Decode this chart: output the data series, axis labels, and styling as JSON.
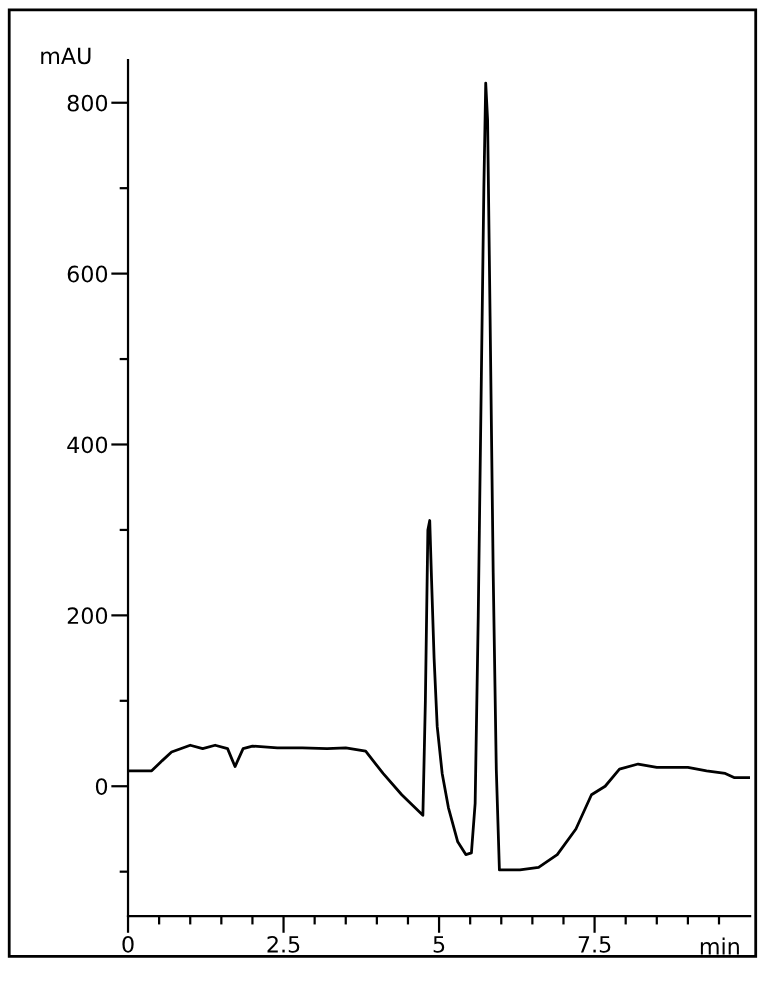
{
  "chart_data": {
    "type": "line",
    "xlabel": "min",
    "ylabel": "mAU",
    "xlim": [
      0,
      10
    ],
    "ylim": [
      -152,
      850
    ],
    "xticks": [
      0,
      {
        "value": 0.5,
        "label": null
      },
      {
        "value": 1,
        "label": null
      },
      {
        "value": 1.5,
        "label": null
      },
      {
        "value": 2,
        "label": null
      },
      {
        "value": 2.5,
        "label": "2.5"
      },
      {
        "value": 3,
        "label": null
      },
      {
        "value": 3.5,
        "label": null
      },
      {
        "value": 4,
        "label": null
      },
      {
        "value": 4.5,
        "label": null
      },
      5,
      {
        "value": 5.5,
        "label": null
      },
      {
        "value": 6,
        "label": null
      },
      {
        "value": 6.5,
        "label": null
      },
      {
        "value": 7,
        "label": null
      },
      {
        "value": 7.5,
        "label": "7.5"
      },
      {
        "value": 8,
        "label": null
      },
      {
        "value": 8.5,
        "label": null
      },
      {
        "value": 9,
        "label": null
      },
      {
        "value": 9.5,
        "label": null
      }
    ],
    "yticks": [
      {
        "value": -100,
        "label": null
      },
      0,
      {
        "value": 100,
        "label": null
      },
      200,
      {
        "value": 300,
        "label": null
      },
      400,
      {
        "value": 500,
        "label": null
      },
      600,
      {
        "value": 700,
        "label": null
      },
      800
    ],
    "grid": false,
    "legend": false,
    "marker": "none",
    "line_style": "solid",
    "series": [
      {
        "color": "#000000",
        "x": [
          0,
          0.38,
          0.55,
          0.7,
          1.0,
          1.2,
          1.4,
          1.6,
          1.72,
          1.85,
          2.0,
          2.4,
          2.8,
          3.2,
          3.5,
          3.82,
          4.1,
          4.4,
          4.74,
          4.78,
          4.82,
          4.85,
          4.88,
          4.92,
          4.97,
          5.05,
          5.15,
          5.3,
          5.43,
          5.52,
          5.58,
          5.63,
          5.68,
          5.72,
          5.75,
          5.78,
          5.82,
          5.87,
          5.92,
          5.97,
          6.3,
          6.6,
          6.9,
          7.2,
          7.45,
          7.67,
          7.9,
          8.2,
          8.5,
          9.0,
          9.3,
          9.6,
          9.75,
          10
        ],
        "values": [
          18,
          18,
          30,
          40,
          48,
          44,
          48,
          44,
          23,
          44,
          47,
          45,
          45,
          44,
          45,
          41,
          15,
          -10,
          -34,
          100,
          300,
          311,
          240,
          150,
          70,
          15,
          -25,
          -65,
          -80,
          -78,
          -20,
          200,
          480,
          700,
          823,
          780,
          550,
          250,
          20,
          -98,
          -98,
          -95,
          -80,
          -50,
          -10,
          0,
          20,
          26,
          22,
          22,
          18,
          15,
          10,
          10
        ]
      }
    ]
  }
}
